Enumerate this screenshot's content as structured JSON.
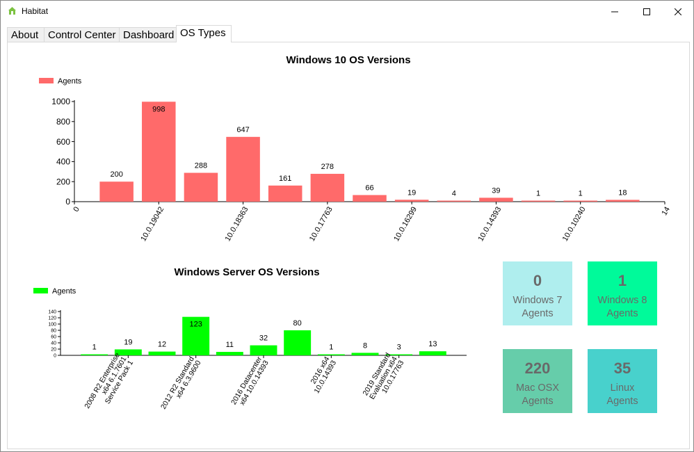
{
  "window": {
    "title": "Habitat",
    "icon": "house-icon",
    "controls": [
      "minimize",
      "maximize",
      "close"
    ]
  },
  "tabs": [
    {
      "label": "About",
      "active": false
    },
    {
      "label": "Control Center",
      "active": false
    },
    {
      "label": "Dashboard",
      "active": false
    },
    {
      "label": "OS Types",
      "active": true
    }
  ],
  "chart_data": [
    {
      "type": "bar",
      "title": "Windows 10 OS Versions",
      "legend": {
        "label": "Agents",
        "placement": "top-left"
      },
      "color": "#ff6a6a",
      "x": [
        1,
        2,
        3,
        4,
        5,
        6,
        7,
        8,
        9,
        10,
        11,
        12,
        13
      ],
      "values": [
        200,
        998,
        288,
        647,
        161,
        278,
        66,
        19,
        4,
        39,
        1,
        1,
        18
      ],
      "xlim": [
        0,
        14
      ],
      "ylim": [
        0,
        1000
      ],
      "yticks": [
        0,
        200,
        400,
        600,
        800,
        1000
      ],
      "xtick_labels": [
        {
          "x": 0,
          "label": "0"
        },
        {
          "x": 2,
          "label": "10.0.19042"
        },
        {
          "x": 4,
          "label": "10.0.18363"
        },
        {
          "x": 6,
          "label": "10.0.17763"
        },
        {
          "x": 8,
          "label": "10.0.16299"
        },
        {
          "x": 10,
          "label": "10.0.14393"
        },
        {
          "x": 12,
          "label": "10.0.10240"
        },
        {
          "x": 14,
          "label": "14"
        }
      ],
      "grid": false
    },
    {
      "type": "bar",
      "title": "Windows Server OS Versions",
      "legend": {
        "label": "Agents",
        "placement": "top-left"
      },
      "color": "#00ff00",
      "x": [
        1,
        2,
        3,
        4,
        5,
        6,
        7,
        8,
        9,
        10,
        11
      ],
      "values": [
        1,
        19,
        12,
        123,
        11,
        32,
        80,
        1,
        8,
        3,
        13
      ],
      "xlim": [
        0,
        12
      ],
      "ylim": [
        0,
        140
      ],
      "yticks": [
        0,
        20,
        40,
        60,
        80,
        100,
        120,
        140
      ],
      "xtick_labels": [
        {
          "x": 2,
          "lines": [
            "2008 R2 Enterprise",
            "x64 6.1.7601",
            "Service Pack 1"
          ]
        },
        {
          "x": 4,
          "lines": [
            "2012 R2 Standard",
            "x64 6.3.9600"
          ]
        },
        {
          "x": 6,
          "lines": [
            "2016 Datacenter",
            "x64 10.0.14393"
          ]
        },
        {
          "x": 8,
          "lines": [
            "2016 x64",
            "10.0.14393"
          ]
        },
        {
          "x": 10,
          "lines": [
            "2019 Standard",
            "Evaluation x64",
            "10.0.17763"
          ]
        }
      ],
      "grid": false
    }
  ],
  "tiles": [
    {
      "count": "0",
      "line1": "Windows 7",
      "line2": "Agents",
      "color": "#afeeee"
    },
    {
      "count": "1",
      "line1": "Windows 8",
      "line2": "Agents",
      "color": "#00fa9a"
    },
    {
      "count": "220",
      "line1": "Mac OSX",
      "line2": "Agents",
      "color": "#66cdaa"
    },
    {
      "count": "35",
      "line1": "Linux",
      "line2": "Agents",
      "color": "#48d1cc"
    }
  ]
}
